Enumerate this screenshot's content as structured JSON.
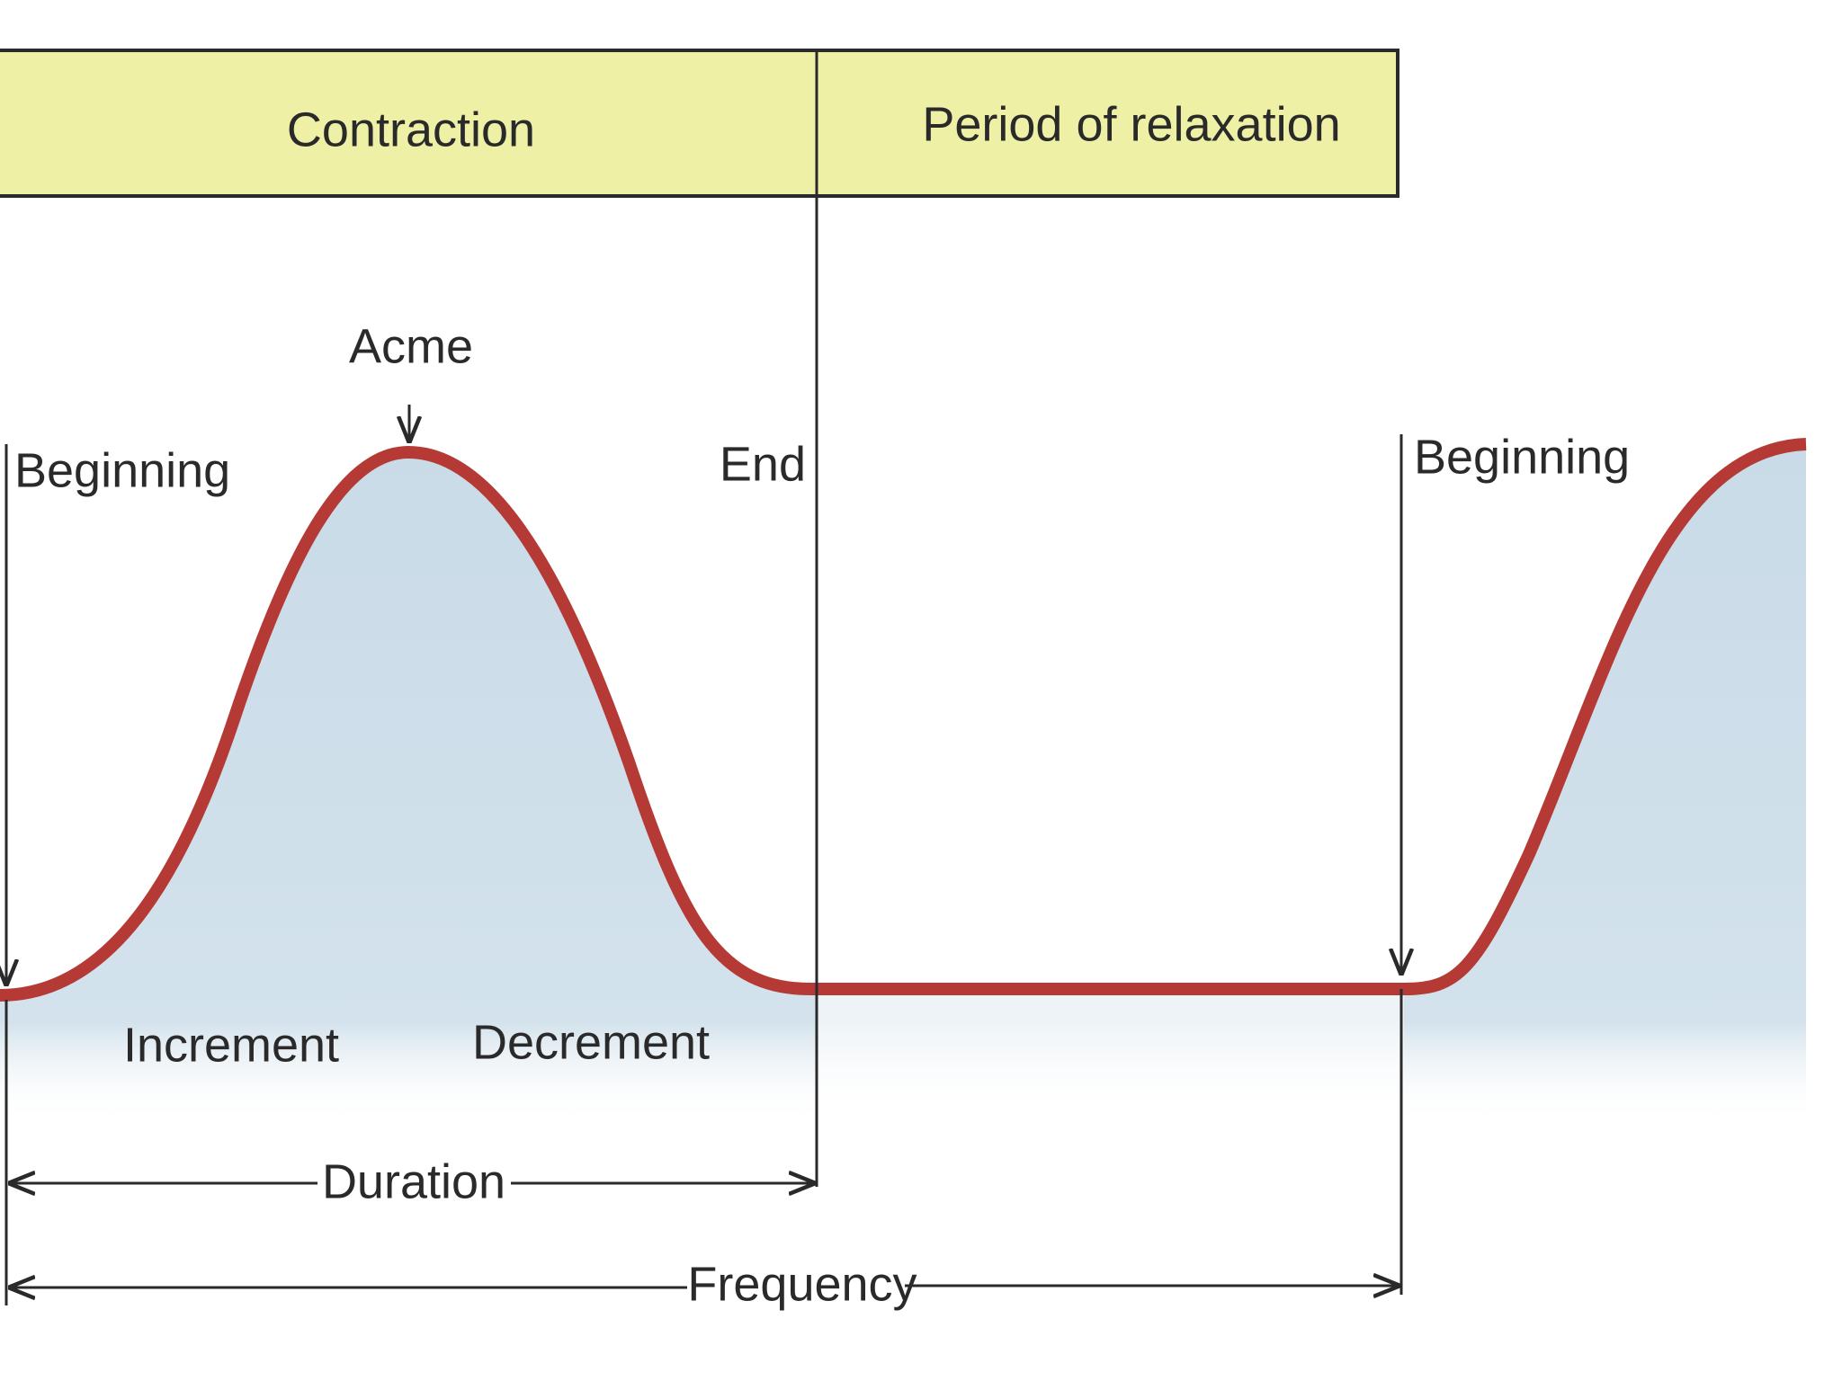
{
  "header": {
    "cells": [
      "Contraction",
      "Period of relaxation"
    ]
  },
  "labels": {
    "acme": "Acme",
    "beginning_left": "Beginning",
    "end": "End",
    "beginning_right": "Beginning",
    "increment": "Increment",
    "decrement": "Decrement",
    "duration": "Duration",
    "frequency": "Frequency"
  }
}
